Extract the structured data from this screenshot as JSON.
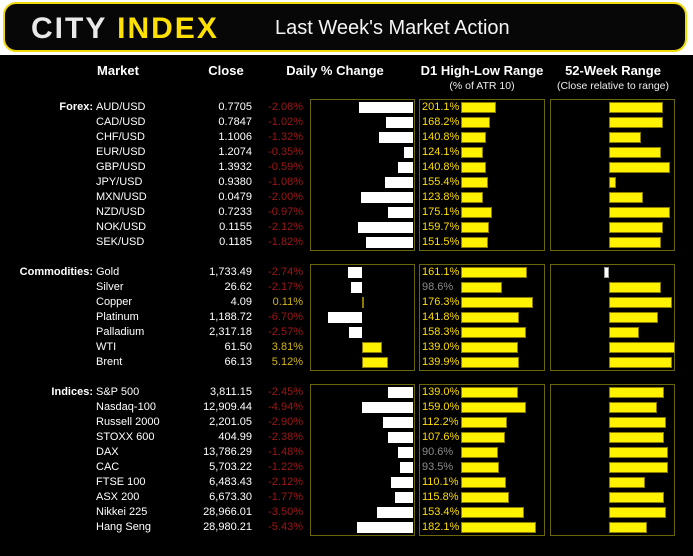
{
  "header": {
    "logo_city": "CITY",
    "logo_index": "INDEX",
    "title": "Last Week's Market Action"
  },
  "columns": {
    "market": "Market",
    "close": "Close",
    "daily_change": "Daily % Change",
    "d1_range": "D1 High-Low Range",
    "d1_range_sub": "(% of ATR 10)",
    "week52_range": "52-Week Range",
    "week52_range_sub": "(Close relative to range)"
  },
  "colors": {
    "background": "#000000",
    "accent_yellow": "#FFF200",
    "label_yellow": "#FFDE00",
    "negative_red": "#9E1717",
    "positive_gold": "#D2B619",
    "muted_grey": "#8C8C8C",
    "panel_border": "#6C660B",
    "bar_white": "#FFFFFF"
  },
  "chart_data": {
    "type": "table",
    "title": "Last Week's Market Action",
    "legend_position": "none",
    "grid": false,
    "columns": [
      "Market",
      "Close",
      "Daily % Change",
      "D1 High-Low Range (% of ATR 10)",
      "52-Week Range (Close relative to range)"
    ],
    "groups": [
      {
        "id": "forex",
        "label": "Forex:",
        "axis": {
          "daily_min": -3.96,
          "daily_max": 0.08,
          "d1_max": 475,
          "range_min": 5.3,
          "range_max": 100,
          "range_mid": 50
        },
        "rows": [
          {
            "market": "AUD/USD",
            "close": "0.7705",
            "change_pct": -2.08,
            "change_label": "-2.08%",
            "d1_pct": 201.1,
            "d1_label": "201.1%",
            "range_pos": 91
          },
          {
            "market": "CAD/USD",
            "close": "0.7847",
            "change_pct": -1.02,
            "change_label": "-1.02%",
            "d1_pct": 168.2,
            "d1_label": "168.2%",
            "range_pos": 91
          },
          {
            "market": "CHF/USD",
            "close": "1.1006",
            "change_pct": -1.32,
            "change_label": "-1.32%",
            "d1_pct": 140.8,
            "d1_label": "140.8%",
            "range_pos": 74
          },
          {
            "market": "EUR/USD",
            "close": "1.2074",
            "change_pct": -0.35,
            "change_label": "-0.35%",
            "d1_pct": 124.1,
            "d1_label": "124.1%",
            "range_pos": 89
          },
          {
            "market": "GBP/USD",
            "close": "1.3932",
            "change_pct": -0.59,
            "change_label": "-0.59%",
            "d1_pct": 140.8,
            "d1_label": "140.8%",
            "range_pos": 96
          },
          {
            "market": "JPY/USD",
            "close": "0.9380",
            "change_pct": -1.08,
            "change_label": "-1.08%",
            "d1_pct": 155.4,
            "d1_label": "155.4%",
            "range_pos": 55
          },
          {
            "market": "MXN/USD",
            "close": "0.0479",
            "change_pct": -2.0,
            "change_label": "-2.00%",
            "d1_pct": 123.8,
            "d1_label": "123.8%",
            "range_pos": 76
          },
          {
            "market": "NZD/USD",
            "close": "0.7233",
            "change_pct": -0.97,
            "change_label": "-0.97%",
            "d1_pct": 175.1,
            "d1_label": "175.1%",
            "range_pos": 96
          },
          {
            "market": "NOK/USD",
            "close": "0.1155",
            "change_pct": -2.12,
            "change_label": "-2.12%",
            "d1_pct": 159.7,
            "d1_label": "159.7%",
            "range_pos": 91
          },
          {
            "market": "SEK/USD",
            "close": "0.1185",
            "change_pct": -1.82,
            "change_label": "-1.82%",
            "d1_pct": 151.5,
            "d1_label": "151.5%",
            "range_pos": 89
          }
        ]
      },
      {
        "id": "commodities",
        "label": "Commodities:",
        "axis": {
          "daily_min": -10.1,
          "daily_max": 10.3,
          "d1_max": 202,
          "range_min": 5.3,
          "range_max": 100,
          "range_mid": 50
        },
        "rows": [
          {
            "market": "Gold",
            "close": "1,733.49",
            "change_pct": -2.74,
            "change_label": "-2.74%",
            "d1_pct": 161.1,
            "d1_label": "161.1%",
            "range_pos": 46
          },
          {
            "market": "Silver",
            "close": "26.62",
            "change_pct": -2.17,
            "change_label": "-2.17%",
            "d1_pct": 98.6,
            "d1_label": "98.6%",
            "range_pos": 89
          },
          {
            "market": "Copper",
            "close": "4.09",
            "change_pct": 0.11,
            "change_label": "0.11%",
            "d1_pct": 176.3,
            "d1_label": "176.3%",
            "range_pos": 98
          },
          {
            "market": "Platinum",
            "close": "1,188.72",
            "change_pct": -6.7,
            "change_label": "-6.70%",
            "d1_pct": 141.8,
            "d1_label": "141.8%",
            "range_pos": 87
          },
          {
            "market": "Palladium",
            "close": "2,317.18",
            "change_pct": -2.57,
            "change_label": "-2.57%",
            "d1_pct": 158.3,
            "d1_label": "158.3%",
            "range_pos": 73
          },
          {
            "market": "WTI",
            "close": "61.50",
            "change_pct": 3.81,
            "change_label": "3.81%",
            "d1_pct": 139.0,
            "d1_label": "139.0%",
            "range_pos": 100
          },
          {
            "market": "Brent",
            "close": "66.13",
            "change_pct": 5.12,
            "change_label": "5.12%",
            "d1_pct": 139.9,
            "d1_label": "139.9%",
            "range_pos": 98
          }
        ]
      },
      {
        "id": "indices",
        "label": "Indices:",
        "axis": {
          "daily_min": -9.99,
          "daily_max": 0.2,
          "d1_max": 202,
          "range_min": 5.3,
          "range_max": 100,
          "range_mid": 50
        },
        "rows": [
          {
            "market": "S&P 500",
            "close": "3,811.15",
            "change_pct": -2.45,
            "change_label": "-2.45%",
            "d1_pct": 139.0,
            "d1_label": "139.0%",
            "range_pos": 92
          },
          {
            "market": "Nasdaq-100",
            "close": "12,909.44",
            "change_pct": -4.94,
            "change_label": "-4.94%",
            "d1_pct": 159.0,
            "d1_label": "159.0%",
            "range_pos": 86
          },
          {
            "market": "Russell 2000",
            "close": "2,201.05",
            "change_pct": -2.9,
            "change_label": "-2.90%",
            "d1_pct": 112.2,
            "d1_label": "112.2%",
            "range_pos": 93
          },
          {
            "market": "STOXX 600",
            "close": "404.99",
            "change_pct": -2.38,
            "change_label": "-2.38%",
            "d1_pct": 107.6,
            "d1_label": "107.6%",
            "range_pos": 92
          },
          {
            "market": "DAX",
            "close": "13,786.29",
            "change_pct": -1.48,
            "change_label": "-1.48%",
            "d1_pct": 90.6,
            "d1_label": "90.6%",
            "range_pos": 95
          },
          {
            "market": "CAC",
            "close": "5,703.22",
            "change_pct": -1.22,
            "change_label": "-1.22%",
            "d1_pct": 93.5,
            "d1_label": "93.5%",
            "range_pos": 95
          },
          {
            "market": "FTSE 100",
            "close": "6,483.43",
            "change_pct": -2.12,
            "change_label": "-2.12%",
            "d1_pct": 110.1,
            "d1_label": "110.1%",
            "range_pos": 77
          },
          {
            "market": "ASX 200",
            "close": "6,673.30",
            "change_pct": -1.77,
            "change_label": "-1.77%",
            "d1_pct": 115.8,
            "d1_label": "115.8%",
            "range_pos": 92
          },
          {
            "market": "Nikkei 225",
            "close": "28,966.01",
            "change_pct": -3.5,
            "change_label": "-3.50%",
            "d1_pct": 153.4,
            "d1_label": "153.4%",
            "range_pos": 93
          },
          {
            "market": "Hang Seng",
            "close": "28,980.21",
            "change_pct": -5.43,
            "change_label": "-5.43%",
            "d1_pct": 182.1,
            "d1_label": "182.1%",
            "range_pos": 79
          }
        ]
      }
    ]
  }
}
